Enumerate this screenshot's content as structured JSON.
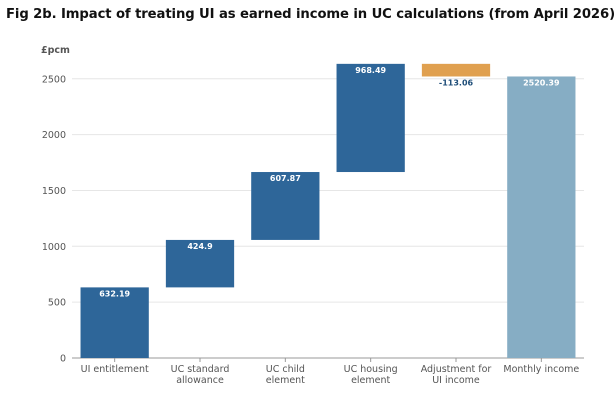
{
  "title": "Fig 2b. Impact of treating UI as earned income in UC calculations (from April 2026)",
  "chart_data": {
    "type": "bar",
    "subtype": "waterfall",
    "unit_label": "£pcm",
    "ylabel": "£pcm",
    "ylim": [
      0,
      2650
    ],
    "yticks": [
      0,
      500,
      1000,
      1500,
      2000,
      2500
    ],
    "grid": true,
    "categories": [
      [
        "UI entitlement"
      ],
      [
        "UC standard",
        "allowance"
      ],
      [
        "UC child",
        "element"
      ],
      [
        "UC housing",
        "element"
      ],
      [
        "Adjustment for",
        "UI income"
      ],
      [
        "Monthly income"
      ]
    ],
    "steps": [
      {
        "value": 632.19,
        "label": "632.19",
        "base": 0,
        "kind": "increase"
      },
      {
        "value": 424.9,
        "label": "424.9",
        "base": 632.19,
        "kind": "increase"
      },
      {
        "value": 607.87,
        "label": "607.87",
        "base": 1057.09,
        "kind": "increase"
      },
      {
        "value": 968.49,
        "label": "968.49",
        "base": 1664.96,
        "kind": "increase"
      },
      {
        "value": -113.06,
        "label": "-113.06",
        "base": 2633.45,
        "kind": "decrease"
      },
      {
        "value": 2520.39,
        "label": "2520.39",
        "base": 0,
        "kind": "total"
      }
    ],
    "colors": {
      "increase": "#2e6699",
      "decrease": "#e0a04f",
      "total": "#86adc4",
      "grid": "#e6e6e6",
      "axis": "#999999",
      "label_inside": "#ffffff",
      "label_outside": "#1f4e79"
    }
  }
}
